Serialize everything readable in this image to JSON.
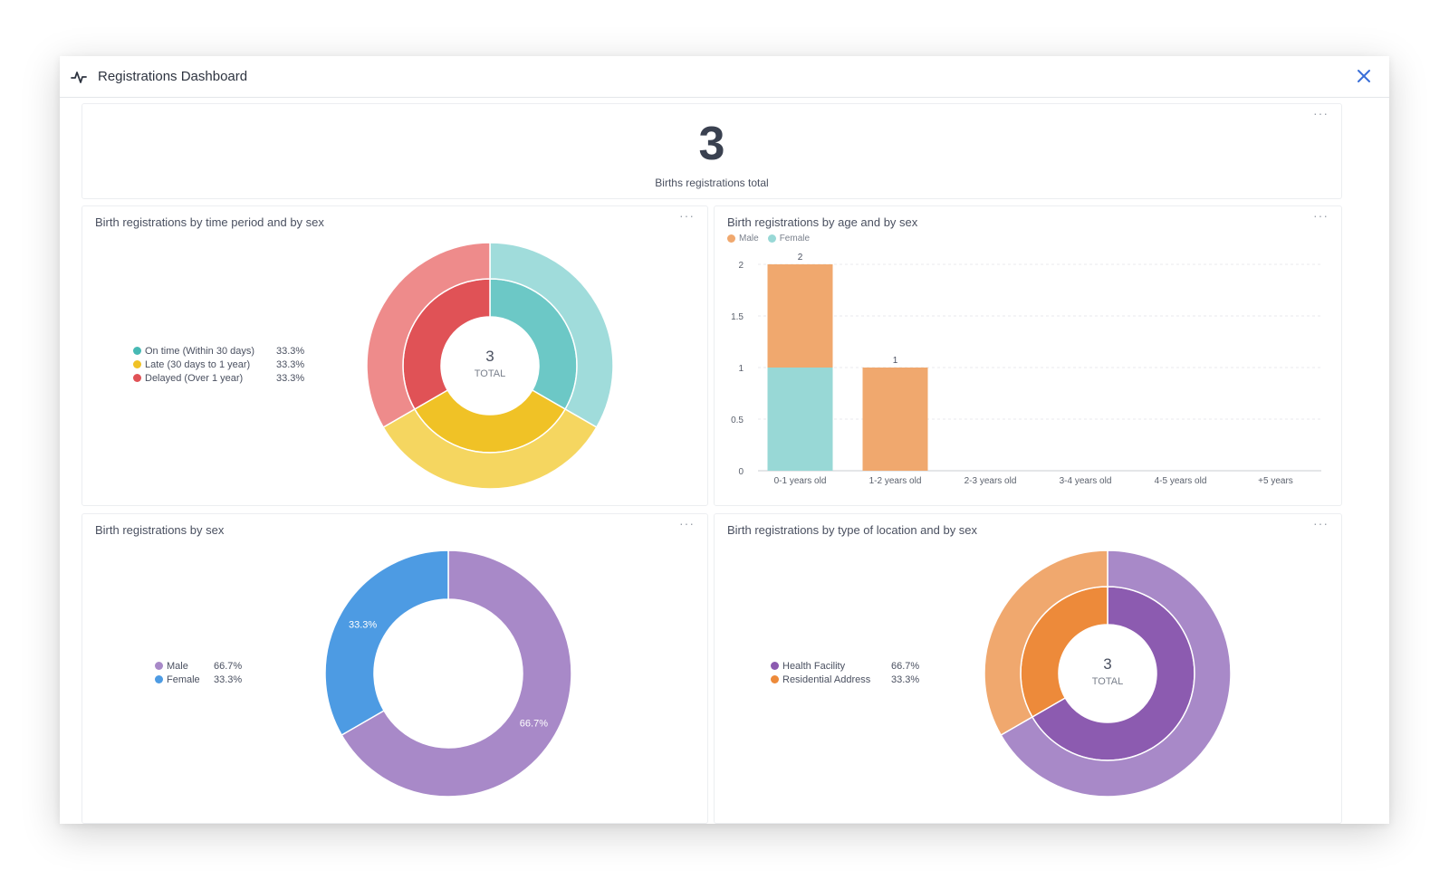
{
  "window": {
    "title": "Registrations Dashboard"
  },
  "kpi": {
    "value": "3",
    "label": "Births registrations total"
  },
  "more_label": "···",
  "colors": {
    "teal": "#6cc8c6",
    "teal_light": "#a0dcdb",
    "yellow": "#f0c226",
    "yellow_light": "#f5d660",
    "red": "#e05256",
    "red_light": "#ee8b8b",
    "purple": "#8c5bb0",
    "purple_light": "#a889c8",
    "blue": "#4d9be3",
    "orange": "#ed8a3a",
    "orange_light": "#f0a86e",
    "bar_male": "#f0a86e",
    "bar_female": "#98d8d6"
  },
  "cards": {
    "time_period": {
      "title": "Birth registrations by time period and by sex",
      "legend": [
        {
          "label": "On time (Within 30 days)",
          "pct": "33.3%",
          "color": "#47b9b4"
        },
        {
          "label": "Late (30 days to 1 year)",
          "pct": "33.3%",
          "color": "#f0c226"
        },
        {
          "label": "Delayed (Over 1 year)",
          "pct": "33.3%",
          "color": "#e05256"
        }
      ],
      "center_value": "3",
      "center_label": "TOTAL"
    },
    "age_sex": {
      "title": "Birth registrations by age and by sex",
      "legend": [
        {
          "label": "Male",
          "color": "#f0a86e"
        },
        {
          "label": "Female",
          "color": "#98d8d6"
        }
      ]
    },
    "by_sex": {
      "title": "Birth registrations by sex",
      "legend": [
        {
          "label": "Male",
          "pct": "66.7%",
          "color": "#a889c8"
        },
        {
          "label": "Female",
          "pct": "33.3%",
          "color": "#4d9be3"
        }
      ]
    },
    "location": {
      "title": "Birth registrations by type of location and by sex",
      "legend": [
        {
          "label": "Health Facility",
          "pct": "66.7%",
          "color": "#8c5bb0"
        },
        {
          "label": "Residential Address",
          "pct": "33.3%",
          "color": "#ed8a3a"
        }
      ],
      "center_value": "3",
      "center_label": "TOTAL"
    }
  },
  "chart_data": [
    {
      "type": "pie",
      "title": "Birth registrations by time period and by sex",
      "categories": [
        "On time (Within 30 days)",
        "Late (30 days to 1 year)",
        "Delayed (Over 1 year)"
      ],
      "values": [
        1,
        1,
        1
      ],
      "percent_labels": [
        "33.3%",
        "33.3%",
        "33.3%"
      ]
    },
    {
      "type": "bar",
      "title": "Birth registrations by age and by sex",
      "categories": [
        "0-1 years old",
        "1-2 years old",
        "2-3 years old",
        "3-4 years old",
        "4-5 years old",
        "+5 years"
      ],
      "series": [
        {
          "name": "Female",
          "values": [
            1,
            0,
            0,
            0,
            0,
            0
          ]
        },
        {
          "name": "Male",
          "values": [
            1,
            1,
            0,
            0,
            0,
            0
          ]
        }
      ],
      "totals": [
        "2",
        "1",
        "",
        "",
        "",
        ""
      ],
      "yticks": [
        "0",
        "0.5",
        "1",
        "1.5",
        "2"
      ],
      "ylim": [
        0,
        2
      ],
      "stacked": true,
      "legend": "top-left"
    },
    {
      "type": "pie",
      "title": "Birth registrations by sex",
      "categories": [
        "Male",
        "Female"
      ],
      "values": [
        2,
        1
      ],
      "percent_labels": [
        "66.7%",
        "33.3%"
      ]
    },
    {
      "type": "pie",
      "title": "Birth registrations by type of location and by sex",
      "categories": [
        "Health Facility",
        "Residential Address"
      ],
      "values": [
        2,
        1
      ],
      "percent_labels": [
        "66.7%",
        "33.3%"
      ]
    }
  ]
}
